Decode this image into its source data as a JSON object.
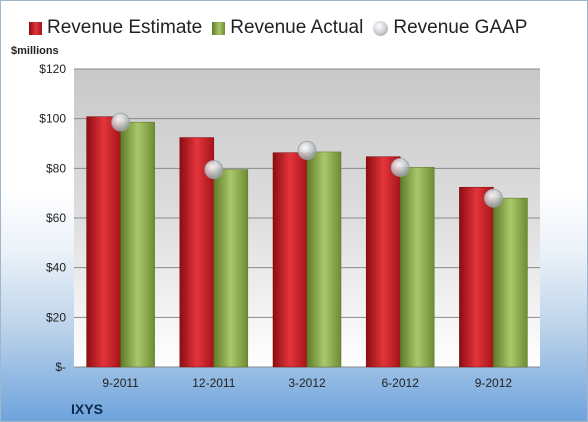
{
  "chart_data": {
    "type": "bar",
    "ylabel": "$millions",
    "categories": [
      "9-2011",
      "12-2011",
      "3-2012",
      "6-2012",
      "9-2012"
    ],
    "ylim": [
      0,
      120
    ],
    "yticks": [
      {
        "value": 0,
        "label": "$-"
      },
      {
        "value": 20,
        "label": "$20"
      },
      {
        "value": 40,
        "label": "$40"
      },
      {
        "value": 60,
        "label": "$60"
      },
      {
        "value": 80,
        "label": "$80"
      },
      {
        "value": 100,
        "label": "$100"
      },
      {
        "value": 120,
        "label": "$120"
      }
    ],
    "grid": true,
    "legend_position": "top",
    "series": [
      {
        "name": "Revenue Estimate",
        "type": "bar",
        "color": "#c1161c",
        "values": [
          100.8,
          92.4,
          86.3,
          84.7,
          72.4
        ]
      },
      {
        "name": "Revenue Actual",
        "type": "bar",
        "color": "#8aab4a",
        "values": [
          98.6,
          79.5,
          86.6,
          80.4,
          68.0
        ]
      },
      {
        "name": "Revenue GAAP",
        "type": "marker",
        "color": "#b9bcc2",
        "values": [
          98.6,
          79.5,
          87.2,
          80.4,
          68.0
        ]
      }
    ]
  },
  "company": "IXYS"
}
